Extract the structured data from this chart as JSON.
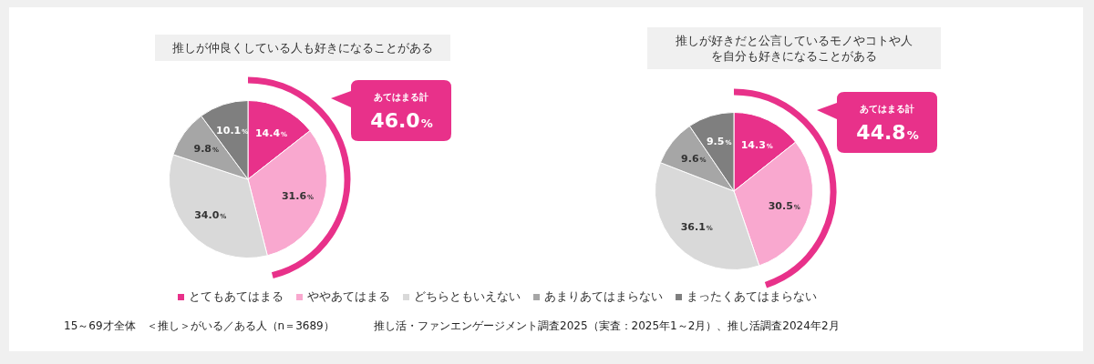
{
  "chart_data": [
    {
      "type": "pie",
      "title": "推しが仲良くしている人も好きになることがある",
      "categories": [
        "とてもあてはまる",
        "ややあてはまる",
        "どちらともいえない",
        "あまりあてはまらない",
        "まったくあてはまらない"
      ],
      "values": [
        14.4,
        31.6,
        34.0,
        9.8,
        10.1
      ],
      "value_labels": [
        "14.4%",
        "31.6%",
        "34.0%",
        "9.8%",
        "10.1%"
      ],
      "colors": [
        "#e8318a",
        "#f9a8cf",
        "#d9d9d9",
        "#a6a6a6",
        "#7f7f7f"
      ],
      "legend": "bottom",
      "annotations": [
        "あてはまる計",
        "46.0%",
        "15～69才全体　＜推し＞がいる／ある人（n＝3689）"
      ]
    },
    {
      "type": "pie",
      "title": "推しが好きだと公言しているモノやコトや人を自分も好きになることがある",
      "categories": [
        null,
        null,
        null,
        null,
        null
      ],
      "values": [
        14.3,
        30.5,
        36.1,
        9.6,
        9.5
      ],
      "value_labels": [
        "14.3%",
        "30.5%",
        "36.1%",
        "9.6%",
        "9.5%"
      ],
      "colors": [
        "#e8318a",
        "#f9a8cf",
        "#d9d9d9",
        "#a6a6a6",
        "#7f7f7f"
      ],
      "annotations": [
        "あてはまる計",
        "44.8%",
        "推し活・ファンエンゲージメント調査2025（実査：2025年1～2月）、推し活調査2024年2月"
      ]
    }
  ]
}
